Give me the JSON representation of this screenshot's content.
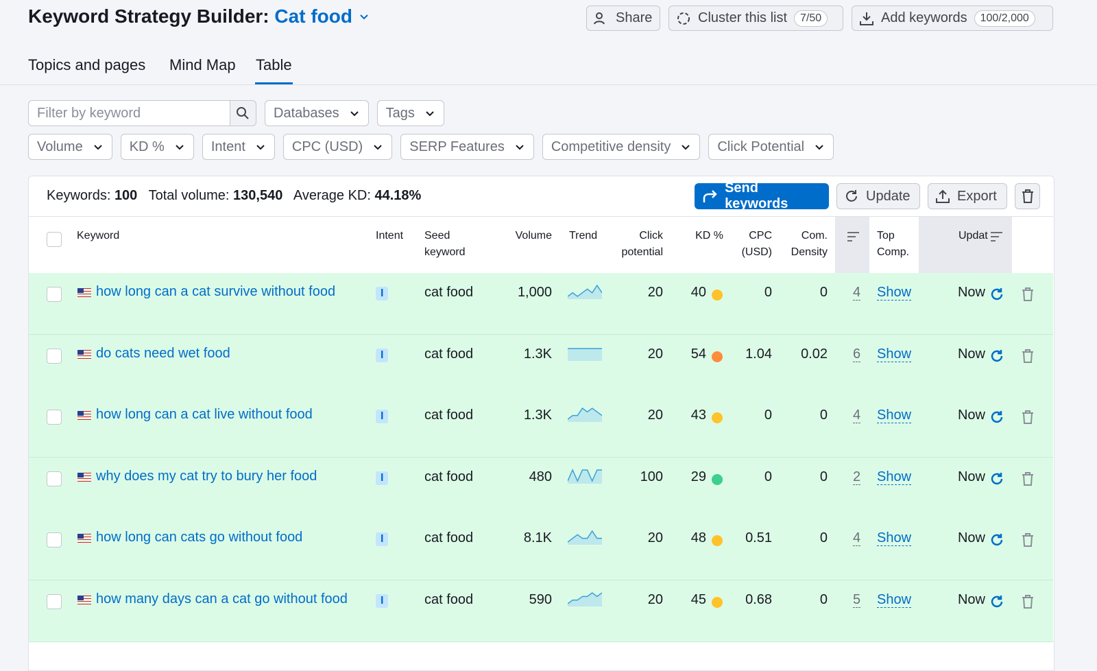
{
  "header": {
    "title": "Keyword Strategy Builder:",
    "project": "Cat food",
    "buttons": [
      {
        "label": "Share"
      },
      {
        "label": "Cluster this list",
        "count": "7/50"
      },
      {
        "label": "Add keywords",
        "count": "100/2,000"
      }
    ]
  },
  "tabs": [
    {
      "label": "Topics and pages",
      "active": false
    },
    {
      "label": "Mind Map",
      "active": false
    },
    {
      "label": "Table",
      "active": true
    }
  ],
  "filters": {
    "search_placeholder": "Filter by keyword",
    "row1": [
      "Databases",
      "Tags"
    ],
    "row2": [
      "Volume",
      "KD %",
      "Intent",
      "CPC (USD)",
      "SERP Features",
      "Competitive density",
      "Click Potential"
    ]
  },
  "summary": {
    "keywords_label": "Keywords:",
    "keywords": "100",
    "volume_label": "Total volume:",
    "volume": "130,540",
    "kd_label": "Average KD:",
    "kd": "44.18%"
  },
  "actions": {
    "send": "Send keywords",
    "update": "Update",
    "export": "Export"
  },
  "table": {
    "columns": {
      "keyword": "Keyword",
      "intent": "Intent",
      "seed": "Seed\nkeyword",
      "volume": "Volume",
      "trend": "Trend",
      "click": "Click\npotential",
      "kd": "KD %",
      "cpc": "CPC\n(USD)",
      "density": "Com.\nDensity",
      "top": "Top\nComp.",
      "updated": "Updat"
    },
    "rows": [
      {
        "keyword": "how long can a cat survive without food",
        "intent": "I",
        "seed": "cat food",
        "volume": "1,000",
        "trend": [
          3,
          4,
          3,
          4,
          5,
          4,
          6,
          4
        ],
        "click": "20",
        "kd": "40",
        "kd_color": "#ffc22a",
        "cpc": "0",
        "density": "0",
        "serp": "4",
        "top": "Show",
        "updated": "Now"
      },
      {
        "keyword": "do cats need wet food",
        "intent": "I",
        "seed": "cat food",
        "volume": "1.3K",
        "trend": [
          5,
          5,
          5,
          5,
          5,
          5,
          5,
          5
        ],
        "click": "20",
        "kd": "54",
        "kd_color": "#ff8c3a",
        "cpc": "1.04",
        "density": "0.02",
        "serp": "6",
        "top": "Show",
        "updated": "Now"
      },
      {
        "keyword": "how long can a cat live without food",
        "intent": "I",
        "seed": "cat food",
        "volume": "1.3K",
        "trend": [
          2,
          3,
          3,
          5,
          4,
          5,
          4,
          3
        ],
        "click": "20",
        "kd": "43",
        "kd_color": "#ffc22a",
        "cpc": "0",
        "density": "0",
        "serp": "4",
        "top": "Show",
        "updated": "Now"
      },
      {
        "keyword": "why does my cat try to bury her food",
        "intent": "I",
        "seed": "cat food",
        "volume": "480",
        "trend": [
          3,
          4,
          3,
          4,
          4,
          3,
          4,
          4
        ],
        "click": "100",
        "kd": "29",
        "kd_color": "#3ccf8e",
        "cpc": "0",
        "density": "0",
        "serp": "2",
        "top": "Show",
        "updated": "Now"
      },
      {
        "keyword": "how long can cats go without food",
        "intent": "I",
        "seed": "cat food",
        "volume": "8.1K",
        "trend": [
          2,
          3,
          4,
          3,
          3,
          5,
          3,
          3
        ],
        "click": "20",
        "kd": "48",
        "kd_color": "#ffc22a",
        "cpc": "0.51",
        "density": "0",
        "serp": "4",
        "top": "Show",
        "updated": "Now"
      },
      {
        "keyword": "how many days can a cat go without food",
        "intent": "I",
        "seed": "cat food",
        "volume": "590",
        "trend": [
          2,
          3,
          3,
          4,
          4,
          5,
          4,
          5
        ],
        "click": "20",
        "kd": "45",
        "kd_color": "#ffc22a",
        "cpc": "0.68",
        "density": "0",
        "serp": "5",
        "top": "Show",
        "updated": "Now"
      }
    ]
  }
}
